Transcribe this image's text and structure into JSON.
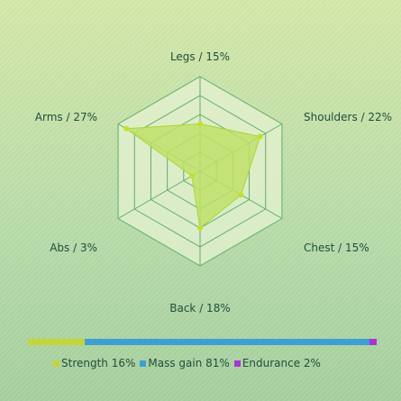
{
  "chart_data": [
    {
      "type": "radar",
      "axes": [
        "Legs",
        "Shoulders",
        "Chest",
        "Back",
        "Abs",
        "Arms"
      ],
      "axis_labels": [
        "Legs / 15%",
        "Shoulders / 22%",
        "Chest / 15%",
        "Back / 18%",
        "Abs / 3%",
        "Arms / 27%"
      ],
      "values": [
        15,
        22,
        15,
        18,
        3,
        27
      ],
      "max": 30,
      "rings": 5,
      "colors": {
        "fill": "#bfe06a",
        "stroke": "#a9d633",
        "point": "#c3e030",
        "grid_bg": "#e6f2d2",
        "grid_line": "#5fae6a"
      }
    },
    {
      "type": "bar",
      "orientation": "stacked-horizontal",
      "categories": [
        "Strength",
        "Mass gain",
        "Endurance"
      ],
      "values": [
        16,
        81,
        2
      ],
      "legend": [
        {
          "label": "Strength 16%",
          "color": "#c6d43c"
        },
        {
          "label": "Mass gain 81%",
          "color": "#3d9fd6"
        },
        {
          "label": "Endurance 2%",
          "color": "#a636d6"
        }
      ]
    }
  ]
}
